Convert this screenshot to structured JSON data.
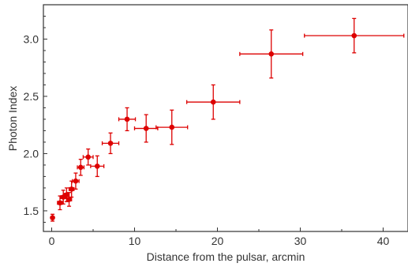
{
  "chart_data": {
    "type": "scatter",
    "title": "",
    "xlabel": "Distance from the pulsar, arcmin",
    "ylabel": "Photon Index",
    "xlim": [
      -1,
      43
    ],
    "ylim": [
      1.32,
      3.3
    ],
    "xticks": [
      0,
      10,
      20,
      30,
      40
    ],
    "xtick_labels": [
      "0",
      "10",
      "20",
      "30",
      "40"
    ],
    "yticks": [
      1.5,
      2.0,
      2.5,
      3.0
    ],
    "ytick_labels": [
      "1.5",
      "2.0",
      "2.5",
      "3.0"
    ],
    "grid": false,
    "series": [
      {
        "color": "#dd0000",
        "points": [
          {
            "x": 0.1,
            "y": 1.44,
            "xerr": 0.1,
            "yerr": 0.03
          },
          {
            "x": 1.0,
            "y": 1.57,
            "xerr": 0.3,
            "yerr": 0.06
          },
          {
            "x": 1.4,
            "y": 1.62,
            "xerr": 0.3,
            "yerr": 0.06
          },
          {
            "x": 1.8,
            "y": 1.64,
            "xerr": 0.3,
            "yerr": 0.06
          },
          {
            "x": 2.1,
            "y": 1.6,
            "xerr": 0.3,
            "yerr": 0.06
          },
          {
            "x": 2.4,
            "y": 1.69,
            "xerr": 0.3,
            "yerr": 0.07
          },
          {
            "x": 2.9,
            "y": 1.76,
            "xerr": 0.4,
            "yerr": 0.07
          },
          {
            "x": 3.5,
            "y": 1.88,
            "xerr": 0.4,
            "yerr": 0.07
          },
          {
            "x": 4.4,
            "y": 1.97,
            "xerr": 0.6,
            "yerr": 0.07
          },
          {
            "x": 5.5,
            "y": 1.89,
            "xerr": 0.8,
            "yerr": 0.09
          },
          {
            "x": 7.1,
            "y": 2.09,
            "xerr": 1.0,
            "yerr": 0.09
          },
          {
            "x": 9.1,
            "y": 2.3,
            "xerr": 1.0,
            "yerr": 0.1
          },
          {
            "x": 11.4,
            "y": 2.22,
            "xerr": 1.4,
            "yerr": 0.12
          },
          {
            "x": 14.5,
            "y": 2.23,
            "xerr": 1.9,
            "yerr": 0.15
          },
          {
            "x": 19.5,
            "y": 2.45,
            "xerr": 3.2,
            "yerr": 0.15
          },
          {
            "x": 26.5,
            "y": 2.87,
            "xerr": 3.8,
            "yerr": 0.21
          },
          {
            "x": 36.5,
            "y": 3.03,
            "xerr": 6.0,
            "yerr": 0.15
          }
        ]
      }
    ]
  }
}
